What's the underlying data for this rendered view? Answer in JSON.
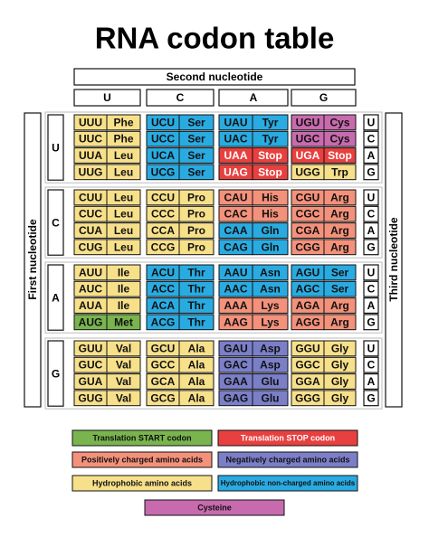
{
  "title": "RNA codon table",
  "second_nucleotide": {
    "label": "Second nucleotide",
    "bases": [
      "U",
      "C",
      "A",
      "G"
    ]
  },
  "first_nucleotide": {
    "label": "First nucleotide",
    "bases": [
      "U",
      "C",
      "A",
      "G"
    ]
  },
  "third_nucleotide": {
    "label": "Third nucleotide",
    "bases": [
      "U",
      "C",
      "A",
      "G"
    ]
  },
  "codon_table": {
    "rows": [
      [
        {
          "codon": "UUU",
          "amino_acid": "Phe",
          "color": "#f7e08a"
        },
        {
          "codon": "UCU",
          "amino_acid": "Ser",
          "color": "#29abe2"
        },
        {
          "codon": "UAU",
          "amino_acid": "Tyr",
          "color": "#29abe2"
        },
        {
          "codon": "UGU",
          "amino_acid": "Cys",
          "color": "#c86aae"
        }
      ],
      [
        {
          "codon": "UUC",
          "amino_acid": "Phe",
          "color": "#f7e08a"
        },
        {
          "codon": "UCC",
          "amino_acid": "Ser",
          "color": "#29abe2"
        },
        {
          "codon": "UAC",
          "amino_acid": "Tyr",
          "color": "#29abe2"
        },
        {
          "codon": "UGC",
          "amino_acid": "Cys",
          "color": "#c86aae"
        }
      ],
      [
        {
          "codon": "UUA",
          "amino_acid": "Leu",
          "color": "#f7e08a"
        },
        {
          "codon": "UCA",
          "amino_acid": "Ser",
          "color": "#29abe2"
        },
        {
          "codon": "UAA",
          "amino_acid": "Stop",
          "color": "#e8403f"
        },
        {
          "codon": "UGA",
          "amino_acid": "Stop",
          "color": "#e8403f"
        }
      ],
      [
        {
          "codon": "UUG",
          "amino_acid": "Leu",
          "color": "#f7e08a"
        },
        {
          "codon": "UCG",
          "amino_acid": "Ser",
          "color": "#29abe2"
        },
        {
          "codon": "UAG",
          "amino_acid": "Stop",
          "color": "#e8403f"
        },
        {
          "codon": "UGG",
          "amino_acid": "Trp",
          "color": "#f7e08a"
        }
      ],
      [
        {
          "codon": "CUU",
          "amino_acid": "Leu",
          "color": "#f7e08a"
        },
        {
          "codon": "CCU",
          "amino_acid": "Pro",
          "color": "#f7e08a"
        },
        {
          "codon": "CAU",
          "amino_acid": "His",
          "color": "#f4917b"
        },
        {
          "codon": "CGU",
          "amino_acid": "Arg",
          "color": "#f4917b"
        }
      ],
      [
        {
          "codon": "CUC",
          "amino_acid": "Leu",
          "color": "#f7e08a"
        },
        {
          "codon": "CCC",
          "amino_acid": "Pro",
          "color": "#f7e08a"
        },
        {
          "codon": "CAC",
          "amino_acid": "His",
          "color": "#f4917b"
        },
        {
          "codon": "CGC",
          "amino_acid": "Arg",
          "color": "#f4917b"
        }
      ],
      [
        {
          "codon": "CUA",
          "amino_acid": "Leu",
          "color": "#f7e08a"
        },
        {
          "codon": "CCA",
          "amino_acid": "Pro",
          "color": "#f7e08a"
        },
        {
          "codon": "CAA",
          "amino_acid": "Gln",
          "color": "#29abe2"
        },
        {
          "codon": "CGA",
          "amino_acid": "Arg",
          "color": "#f4917b"
        }
      ],
      [
        {
          "codon": "CUG",
          "amino_acid": "Leu",
          "color": "#f7e08a"
        },
        {
          "codon": "CCG",
          "amino_acid": "Pro",
          "color": "#f7e08a"
        },
        {
          "codon": "CAG",
          "amino_acid": "Gln",
          "color": "#29abe2"
        },
        {
          "codon": "CGG",
          "amino_acid": "Arg",
          "color": "#f4917b"
        }
      ],
      [
        {
          "codon": "AUU",
          "amino_acid": "Ile",
          "color": "#f7e08a"
        },
        {
          "codon": "ACU",
          "amino_acid": "Thr",
          "color": "#29abe2"
        },
        {
          "codon": "AAU",
          "amino_acid": "Asn",
          "color": "#29abe2"
        },
        {
          "codon": "AGU",
          "amino_acid": "Ser",
          "color": "#29abe2"
        }
      ],
      [
        {
          "codon": "AUC",
          "amino_acid": "Ile",
          "color": "#f7e08a"
        },
        {
          "codon": "ACC",
          "amino_acid": "Thr",
          "color": "#29abe2"
        },
        {
          "codon": "AAC",
          "amino_acid": "Asn",
          "color": "#29abe2"
        },
        {
          "codon": "AGC",
          "amino_acid": "Ser",
          "color": "#29abe2"
        }
      ],
      [
        {
          "codon": "AUA",
          "amino_acid": "Ile",
          "color": "#f7e08a"
        },
        {
          "codon": "ACA",
          "amino_acid": "Thr",
          "color": "#29abe2"
        },
        {
          "codon": "AAA",
          "amino_acid": "Lys",
          "color": "#f4917b"
        },
        {
          "codon": "AGA",
          "amino_acid": "Arg",
          "color": "#f4917b"
        }
      ],
      [
        {
          "codon": "AUG",
          "amino_acid": "Met",
          "color": "#79b44e"
        },
        {
          "codon": "ACG",
          "amino_acid": "Thr",
          "color": "#29abe2"
        },
        {
          "codon": "AAG",
          "amino_acid": "Lys",
          "color": "#f4917b"
        },
        {
          "codon": "AGG",
          "amino_acid": "Arg",
          "color": "#f4917b"
        }
      ],
      [
        {
          "codon": "GUU",
          "amino_acid": "Val",
          "color": "#f7e08a"
        },
        {
          "codon": "GCU",
          "amino_acid": "Ala",
          "color": "#f7e08a"
        },
        {
          "codon": "GAU",
          "amino_acid": "Asp",
          "color": "#7b7fc8"
        },
        {
          "codon": "GGU",
          "amino_acid": "Gly",
          "color": "#f7e08a"
        }
      ],
      [
        {
          "codon": "GUC",
          "amino_acid": "Val",
          "color": "#f7e08a"
        },
        {
          "codon": "GCC",
          "amino_acid": "Ala",
          "color": "#f7e08a"
        },
        {
          "codon": "GAC",
          "amino_acid": "Asp",
          "color": "#7b7fc8"
        },
        {
          "codon": "GGC",
          "amino_acid": "Gly",
          "color": "#f7e08a"
        }
      ],
      [
        {
          "codon": "GUA",
          "amino_acid": "Val",
          "color": "#f7e08a"
        },
        {
          "codon": "GCA",
          "amino_acid": "Ala",
          "color": "#f7e08a"
        },
        {
          "codon": "GAA",
          "amino_acid": "Glu",
          "color": "#7b7fc8"
        },
        {
          "codon": "GGA",
          "amino_acid": "Gly",
          "color": "#f7e08a"
        }
      ],
      [
        {
          "codon": "GUG",
          "amino_acid": "Val",
          "color": "#f7e08a"
        },
        {
          "codon": "GCG",
          "amino_acid": "Ala",
          "color": "#f7e08a"
        },
        {
          "codon": "GAG",
          "amino_acid": "Glu",
          "color": "#7b7fc8"
        },
        {
          "codon": "GGG",
          "amino_acid": "Gly",
          "color": "#f7e08a"
        }
      ]
    ]
  },
  "legend": [
    {
      "label": "Translation START codon",
      "color": "#79b44e"
    },
    {
      "label": "Translation STOP codon",
      "color": "#e8403f"
    },
    {
      "label": "Positively charged amino acids",
      "color": "#f4917b"
    },
    {
      "label": "Negatively charged amino acids",
      "color": "#7b7fc8"
    },
    {
      "label": "Hydrophobic amino acids",
      "color": "#f7e08a"
    },
    {
      "label": "Hydrophobic non-charged amino acids",
      "color": "#29abe2"
    },
    {
      "label": "Cysteine",
      "color": "#c86aae"
    }
  ]
}
